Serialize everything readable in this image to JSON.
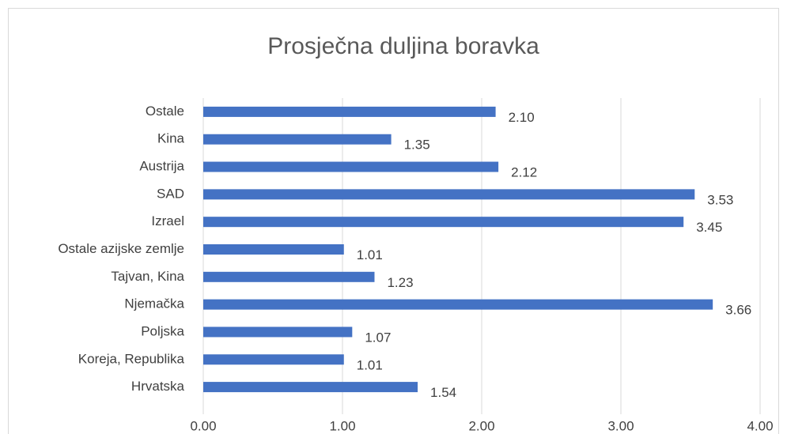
{
  "chart_data": {
    "type": "bar",
    "orientation": "horizontal",
    "title": "Prosječna duljina boravka",
    "categories": [
      "Ostale",
      "Kina",
      "Austrija",
      "SAD",
      "Izrael",
      "Ostale azijske zemlje",
      "Tajvan, Kina",
      "Njemačka",
      "Poljska",
      "Koreja, Republika",
      "Hrvatska"
    ],
    "values": [
      2.1,
      1.35,
      2.12,
      3.53,
      3.45,
      1.01,
      1.23,
      3.66,
      1.07,
      1.01,
      1.54
    ],
    "value_labels": [
      "2.10",
      "1.35",
      "2.12",
      "3.53",
      "3.45",
      "1.01",
      "1.23",
      "3.66",
      "1.07",
      "1.01",
      "1.54"
    ],
    "color": "#4472c4",
    "xlim": [
      0,
      4
    ],
    "xticks": [
      {
        "value": 0,
        "label": "0.00"
      },
      {
        "value": 1,
        "label": "1.00"
      },
      {
        "value": 2,
        "label": "2.00"
      },
      {
        "value": 3,
        "label": "3.00"
      },
      {
        "value": 4,
        "label": "4.00"
      }
    ],
    "grid": true
  }
}
